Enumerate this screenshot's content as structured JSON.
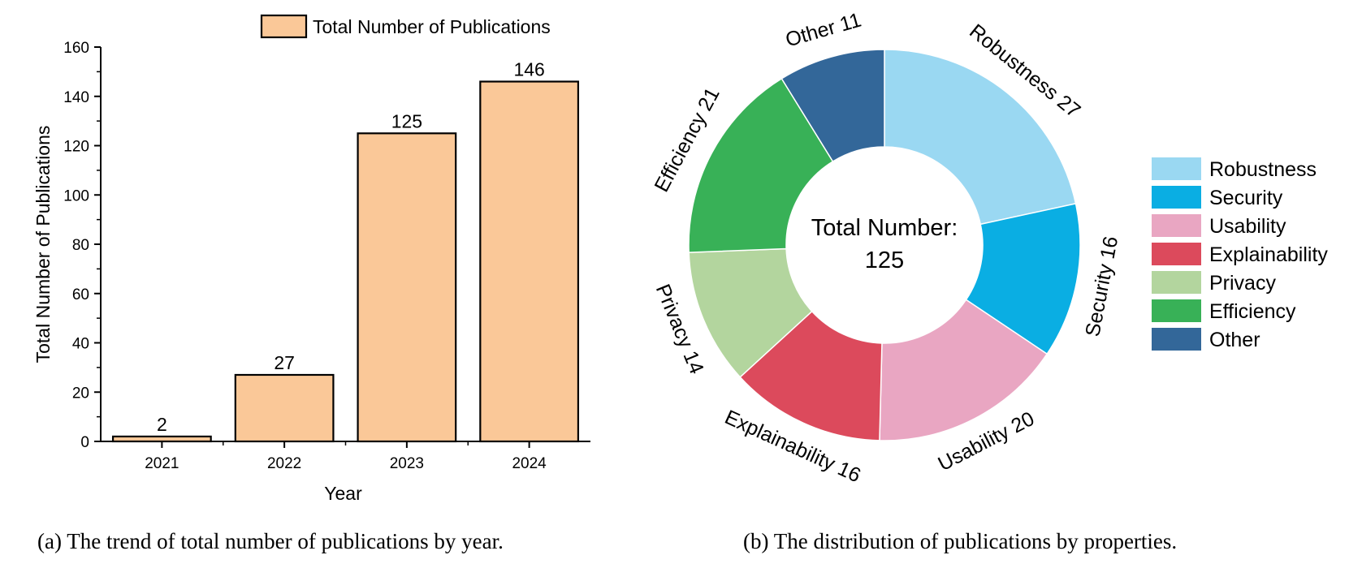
{
  "chart_data": [
    {
      "type": "bar",
      "categories": [
        "2021",
        "2022",
        "2023",
        "2024"
      ],
      "series": [
        {
          "name": "Total Number of Publications",
          "values": [
            2,
            27,
            125,
            146
          ],
          "data_labels": [
            "2",
            "27",
            "125",
            "146"
          ]
        }
      ],
      "xlabel": "Year",
      "ylabel": "Total Number of Publications",
      "ylim": [
        0,
        160
      ],
      "yticks": [
        0,
        20,
        40,
        60,
        80,
        100,
        120,
        140,
        160
      ],
      "yticklabels": [
        "0",
        "20",
        "40",
        "60",
        "80",
        "100",
        "120",
        "140",
        "160"
      ],
      "grid": false,
      "legend": {
        "position": "top-right",
        "entries": [
          "Total Number of Publications"
        ]
      },
      "colors": {
        "bar_fill": "#FAC898",
        "bar_edge": "#000000"
      }
    },
    {
      "type": "pie",
      "variant": "donut",
      "center_text": [
        "Total Number:",
        "125"
      ],
      "slices": [
        {
          "name": "Robustness",
          "value": 27,
          "label": "Robustness 27",
          "color": "#9AD8F2"
        },
        {
          "name": "Security",
          "value": 16,
          "label": "Security 16",
          "color": "#0AAEE3"
        },
        {
          "name": "Usability",
          "value": 20,
          "label": "Usability 20",
          "color": "#E9A6C2"
        },
        {
          "name": "Explainability",
          "value": 16,
          "label": "Explainability 16",
          "color": "#DC4A5C"
        },
        {
          "name": "Privacy",
          "value": 14,
          "label": "Privacy 14",
          "color": "#B3D59E"
        },
        {
          "name": "Efficiency",
          "value": 21,
          "label": "Efficiency 21",
          "color": "#38B157"
        },
        {
          "name": "Other",
          "value": 11,
          "label": "Other 11",
          "color": "#336799"
        }
      ],
      "legend": {
        "position": "right",
        "entries": [
          "Robustness",
          "Security",
          "Usability",
          "Explainability",
          "Privacy",
          "Efficiency",
          "Other"
        ]
      }
    }
  ],
  "captions": {
    "a": "(a) The trend of total number of publications by year.",
    "b": "(b) The distribution of publications by properties."
  }
}
